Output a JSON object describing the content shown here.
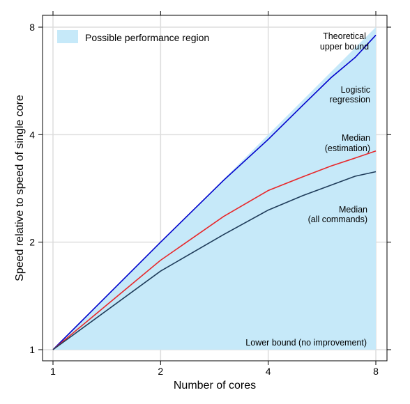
{
  "chart_data": {
    "type": "area",
    "title": "",
    "xlabel": "Number of cores",
    "ylabel": "Speed relative to speed of single core",
    "x_scale": "log2",
    "y_scale": "log2",
    "xlim": [
      1,
      8
    ],
    "ylim": [
      1,
      8
    ],
    "x_ticks": [
      1,
      2,
      4,
      8
    ],
    "y_ticks": [
      1,
      2,
      4,
      8
    ],
    "grid": true,
    "legend_position": "top-left",
    "region": {
      "name": "Possible performance region",
      "color": "#c6e9f9",
      "upper": [
        [
          1,
          1
        ],
        [
          8,
          8
        ]
      ],
      "lower": [
        [
          1,
          1
        ],
        [
          8,
          1
        ]
      ]
    },
    "series": [
      {
        "name": "Logistic regression",
        "color": "#0000cc",
        "points": [
          [
            1,
            1
          ],
          [
            2,
            2
          ],
          [
            3,
            2.98
          ],
          [
            4,
            3.88
          ],
          [
            5,
            4.84
          ],
          [
            6,
            5.78
          ],
          [
            7,
            6.58
          ],
          [
            8,
            7.6
          ]
        ]
      },
      {
        "name": "Median (estimation)",
        "color": "#e8272a",
        "points": [
          [
            1,
            1
          ],
          [
            2,
            1.78
          ],
          [
            3,
            2.36
          ],
          [
            4,
            2.79
          ],
          [
            5,
            3.05
          ],
          [
            6,
            3.27
          ],
          [
            7,
            3.44
          ],
          [
            8,
            3.6
          ]
        ]
      },
      {
        "name": "Median (all commands)",
        "color": "#1f3c5a",
        "points": [
          [
            1,
            1
          ],
          [
            2,
            1.66
          ],
          [
            3,
            2.1
          ],
          [
            4,
            2.46
          ],
          [
            5,
            2.7
          ],
          [
            6,
            2.89
          ],
          [
            7,
            3.06
          ],
          [
            8,
            3.15
          ]
        ]
      }
    ],
    "annotations": {
      "theoretical": [
        "Theoretical",
        "upper bound"
      ],
      "logistic": [
        "Logistic",
        "regression"
      ],
      "median_estimation": [
        "Median",
        "(estimation)"
      ],
      "median_all": [
        "Median",
        "(all commands)"
      ],
      "lower_bound": "Lower bound (no improvement)"
    }
  }
}
